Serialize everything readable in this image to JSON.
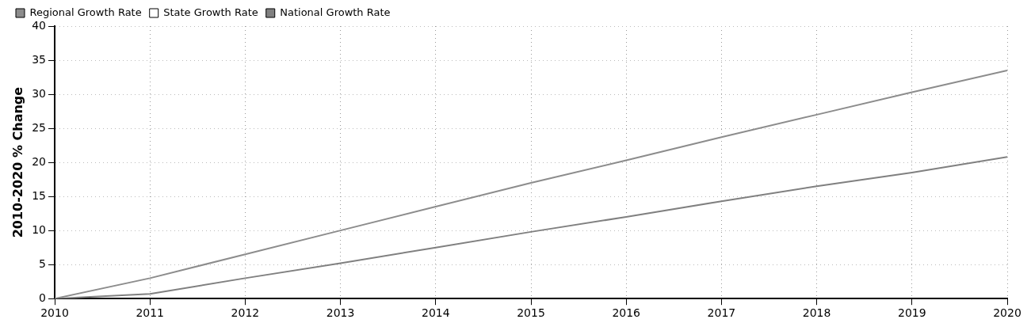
{
  "chart_data": {
    "type": "line",
    "ylabel": "2010-2020 % Change",
    "x": [
      2010,
      2011,
      2012,
      2013,
      2014,
      2015,
      2016,
      2017,
      2018,
      2019,
      2020
    ],
    "xlim": [
      2010,
      2020
    ],
    "xticks": [
      2010,
      2011,
      2012,
      2013,
      2014,
      2015,
      2016,
      2017,
      2018,
      2019,
      2020
    ],
    "ylim": [
      0,
      40
    ],
    "yticks": [
      0,
      5,
      10,
      15,
      20,
      25,
      30,
      35,
      40
    ],
    "grid": true,
    "legend": "top left",
    "marker": "none",
    "line_style": "solid",
    "series": [
      {
        "name": "Regional Growth Rate",
        "color": "#8c8c8c",
        "values": [
          0,
          3,
          6.5,
          10,
          13.5,
          17,
          20.3,
          23.7,
          27,
          30.3,
          33.5
        ]
      },
      {
        "name": "State Growth Rate",
        "color": "#ffffff",
        "values": [
          null,
          null,
          null,
          null,
          null,
          null,
          null,
          null,
          null,
          null,
          null
        ]
      },
      {
        "name": "National Growth Rate",
        "color": "#808080",
        "values": [
          0,
          0.7,
          3,
          5.2,
          7.5,
          9.8,
          12,
          14.3,
          16.5,
          18.5,
          20.8
        ]
      }
    ]
  }
}
